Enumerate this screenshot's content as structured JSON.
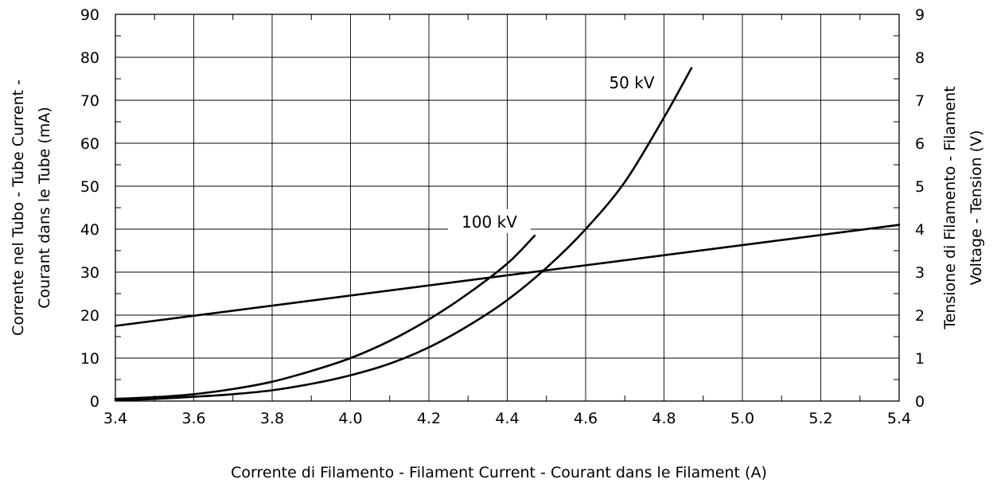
{
  "chart_data": {
    "type": "line",
    "x_axis": {
      "label": "Corrente di Filamento - Filament Current - Courant dans le Filament  (A)",
      "range": [
        3.4,
        5.4
      ],
      "ticks": [
        3.4,
        3.6,
        3.8,
        4.0,
        4.2,
        4.4,
        4.6,
        4.8,
        5.0,
        5.2,
        5.4
      ],
      "tick_labels": [
        "3.4",
        "3.6",
        "3.8",
        "4.0",
        "4.2",
        "4.4",
        "4.6",
        "4.8",
        "5.0",
        "5.2",
        "5.4"
      ]
    },
    "y_axis_left": {
      "label_lines": [
        "Corrente nel Tubo - Tube Current -",
        "Courant dans le Tube   (mA)"
      ],
      "range": [
        0,
        90
      ],
      "ticks": [
        0,
        10,
        20,
        30,
        40,
        50,
        60,
        70,
        80,
        90
      ],
      "tick_labels": [
        "0",
        "10",
        "20",
        "30",
        "40",
        "50",
        "60",
        "70",
        "80",
        "90"
      ]
    },
    "y_axis_right": {
      "label_lines": [
        "Tensione di Filamento -     Filament",
        "Voltage - Tension    (V)"
      ],
      "range": [
        0,
        9
      ],
      "ticks": [
        0,
        1,
        2,
        3,
        4,
        5,
        6,
        7,
        8,
        9
      ],
      "tick_labels": [
        "0",
        "1",
        "2",
        "3",
        "4",
        "5",
        "6",
        "7",
        "8",
        "9"
      ]
    },
    "grid": true,
    "series": [
      {
        "name": "100 kV",
        "axis": "left",
        "x": [
          3.4,
          3.5,
          3.6,
          3.7,
          3.8,
          3.9,
          4.0,
          4.1,
          4.2,
          4.3,
          4.4,
          4.47
        ],
        "y": [
          0.5,
          0.9,
          1.6,
          2.8,
          4.5,
          7.0,
          10.0,
          14.0,
          19.0,
          25.0,
          32.0,
          38.5
        ]
      },
      {
        "name": "50 kV",
        "axis": "left",
        "x": [
          3.4,
          3.5,
          3.6,
          3.7,
          3.8,
          3.9,
          4.0,
          4.1,
          4.2,
          4.3,
          4.4,
          4.5,
          4.6,
          4.7,
          4.8,
          4.87
        ],
        "y": [
          0.2,
          0.5,
          1.0,
          1.6,
          2.5,
          4.0,
          6.0,
          8.7,
          12.5,
          17.5,
          23.5,
          31.0,
          40.0,
          51.0,
          66.0,
          77.5
        ]
      },
      {
        "name": "",
        "axis": "right",
        "x": [
          3.4,
          5.4
        ],
        "y": [
          1.75,
          4.1
        ]
      }
    ]
  }
}
